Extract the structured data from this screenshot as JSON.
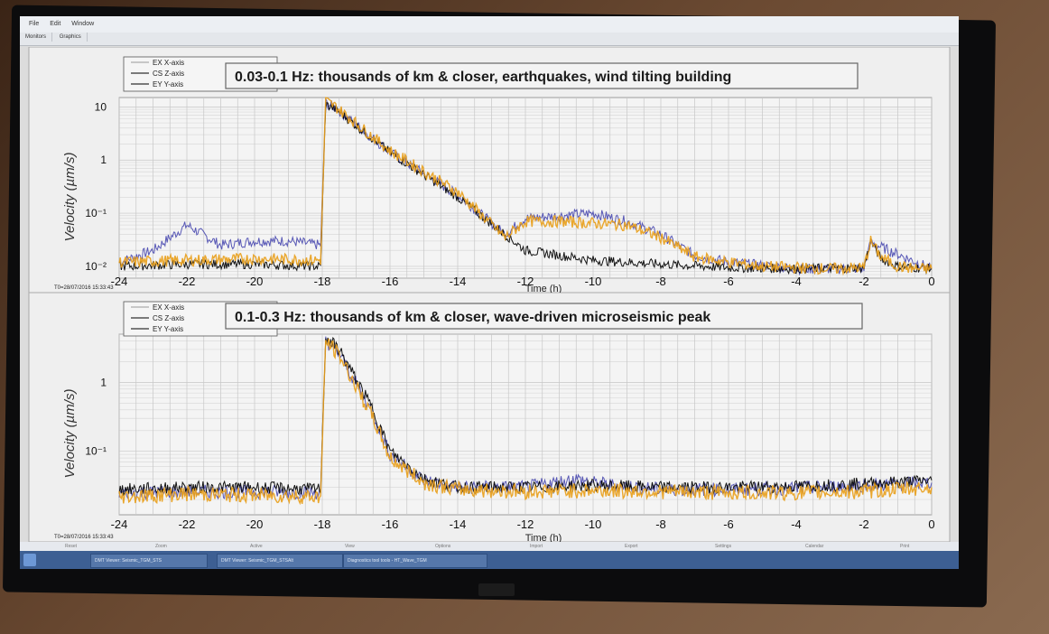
{
  "menu": [
    "File",
    "Edit",
    "Window"
  ],
  "tabs": [
    "Monitors",
    "Graphics"
  ],
  "taskbar_items": [
    "DMT Viewer: Seismic_TGM_STS",
    "DMT Viewer: Seismic_TGM_STSAlt",
    "Diagnostics tool tools - HT_Wave_TGM"
  ],
  "bottom_buttons": [
    "Reset",
    "Zoom",
    "Active",
    "View",
    "Options",
    "Import",
    "Export",
    "Settings",
    "Calendar",
    "Print"
  ],
  "colors": {
    "x_axis": "#8a8a8a",
    "z_axis": "#000000",
    "y_axis": "#4a4ab0",
    "orange": "#e8a01c"
  },
  "chart_data": [
    {
      "type": "line",
      "title": "0.03-0.1 Hz: thousands of km & closer, earthquakes, wind tilting building",
      "ylabel": "Velocity  (µm/s)",
      "xlabel": "Time (h)",
      "t0": "T0=28/07/2016 15:33:43",
      "yscale": "log",
      "ylim": [
        0.006,
        15
      ],
      "xlim": [
        -24,
        0
      ],
      "xticks": [
        "-24",
        "-22",
        "-20",
        "-18",
        "-16",
        "-14",
        "-12",
        "-10",
        "-8",
        "-6",
        "-4",
        "-2",
        "0"
      ],
      "yticks": [
        "10",
        "1",
        "10⁻¹",
        "10⁻²"
      ],
      "ytick_values": [
        10,
        1,
        0.1,
        0.01
      ],
      "legend": [
        "EX X-axis",
        "CS Z-axis",
        "EY Y-axis"
      ],
      "series": [
        {
          "name": "EX X-axis",
          "color": "#e8a01c",
          "x": [
            -24,
            -22,
            -20,
            -18.05,
            -17.9,
            -17.6,
            -16,
            -14,
            -12.6,
            -12,
            -11,
            -10,
            -9,
            -8,
            -7,
            -6,
            -5,
            -4,
            -3,
            -2,
            -1.8,
            -1.5,
            -1,
            -0.5,
            0
          ],
          "y": [
            0.012,
            0.013,
            0.014,
            0.013,
            13,
            10,
            1.5,
            0.25,
            0.035,
            0.07,
            0.07,
            0.065,
            0.06,
            0.035,
            0.015,
            0.012,
            0.01,
            0.0095,
            0.009,
            0.0095,
            0.03,
            0.015,
            0.01,
            0.009,
            0.009
          ]
        },
        {
          "name": "CS Z-axis",
          "color": "#000000",
          "x": [
            -24,
            -22,
            -20,
            -18.05,
            -17.9,
            -17.6,
            -16,
            -14,
            -12,
            -10,
            -8,
            -6,
            -4,
            -2,
            -1.8,
            -1.5,
            -1,
            0
          ],
          "y": [
            0.01,
            0.011,
            0.011,
            0.01,
            11,
            9,
            1.4,
            0.2,
            0.02,
            0.013,
            0.011,
            0.0095,
            0.009,
            0.0095,
            0.03,
            0.014,
            0.01,
            0.009
          ]
        },
        {
          "name": "EY Y-axis",
          "color": "#4a4ab0",
          "x": [
            -24,
            -23,
            -22,
            -21,
            -20,
            -19,
            -18.05,
            -17.9,
            -17.6,
            -16,
            -14,
            -12.6,
            -12,
            -11,
            -10,
            -9,
            -8,
            -7,
            -6,
            -4,
            -2,
            -1.8,
            0
          ],
          "y": [
            0.012,
            0.02,
            0.06,
            0.025,
            0.03,
            0.03,
            0.025,
            12,
            9.5,
            1.4,
            0.22,
            0.04,
            0.08,
            0.09,
            0.1,
            0.07,
            0.04,
            0.016,
            0.012,
            0.009,
            0.009,
            0.028,
            0.009
          ]
        }
      ]
    },
    {
      "type": "line",
      "title": "0.1-0.3 Hz: thousands of km & closer, wave-driven microseismic peak",
      "ylabel": "Velocity  (µm/s)",
      "xlabel": "Time (h)",
      "t0": "T0=28/07/2016 15:33:43",
      "yscale": "log",
      "ylim": [
        0.012,
        5
      ],
      "xlim": [
        -24,
        0
      ],
      "xticks": [
        "-24",
        "-22",
        "-20",
        "-18",
        "-16",
        "-14",
        "-12",
        "-10",
        "-8",
        "-6",
        "-4",
        "-2",
        "0"
      ],
      "yticks": [
        "1",
        "10⁻¹"
      ],
      "ytick_values": [
        1,
        0.1
      ],
      "legend": [
        "EX X-axis",
        "CS Z-axis",
        "EY Y-axis"
      ],
      "series": [
        {
          "name": "EX X-axis",
          "color": "#e8a01c",
          "x": [
            -24,
            -22,
            -20,
            -18.05,
            -17.9,
            -17.5,
            -16.5,
            -16,
            -15,
            -14,
            -12,
            -10,
            -8,
            -6,
            -4,
            -2,
            0
          ],
          "y": [
            0.022,
            0.024,
            0.023,
            0.022,
            4,
            2.5,
            0.3,
            0.08,
            0.035,
            0.028,
            0.026,
            0.027,
            0.026,
            0.025,
            0.025,
            0.026,
            0.03
          ]
        },
        {
          "name": "CS Z-axis",
          "color": "#000000",
          "x": [
            -24,
            -22,
            -20,
            -18.05,
            -17.9,
            -17.5,
            -16.5,
            -16,
            -15,
            -14,
            -12,
            -10,
            -8,
            -6,
            -4,
            -2,
            0
          ],
          "y": [
            0.028,
            0.03,
            0.03,
            0.028,
            4.5,
            3,
            0.4,
            0.1,
            0.04,
            0.03,
            0.03,
            0.032,
            0.03,
            0.03,
            0.031,
            0.034,
            0.038
          ]
        },
        {
          "name": "EY Y-axis",
          "color": "#4a4ab0",
          "x": [
            -24,
            -22,
            -20,
            -18.05,
            -17.9,
            -17.5,
            -16.5,
            -16,
            -15,
            -14,
            -12,
            -10.5,
            -10,
            -8,
            -6,
            -4,
            -2,
            0
          ],
          "y": [
            0.025,
            0.026,
            0.026,
            0.025,
            4,
            2.6,
            0.35,
            0.09,
            0.038,
            0.03,
            0.03,
            0.04,
            0.035,
            0.028,
            0.028,
            0.029,
            0.032,
            0.035
          ]
        }
      ]
    }
  ]
}
